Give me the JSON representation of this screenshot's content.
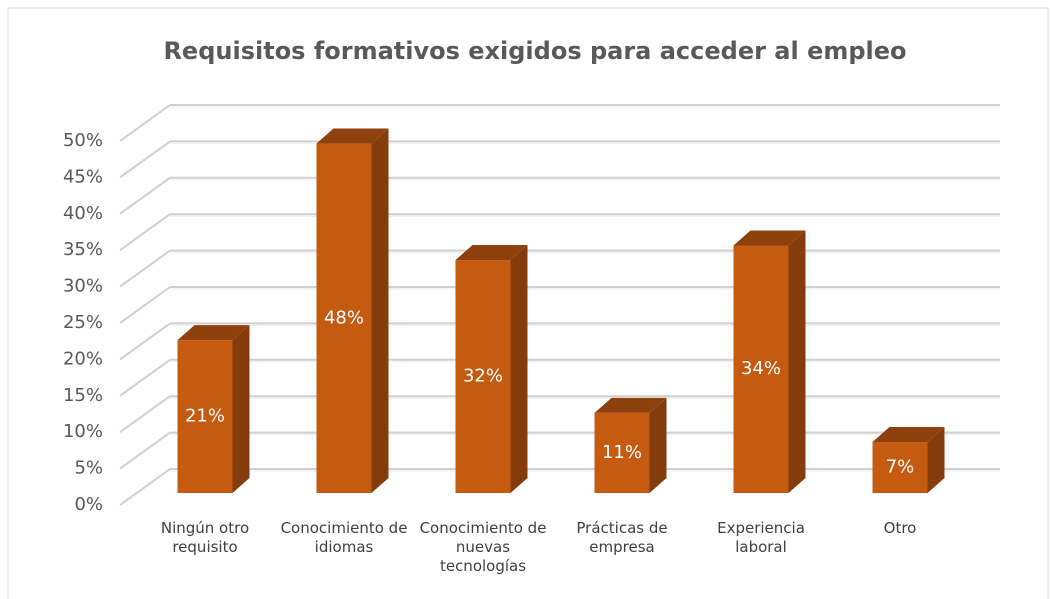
{
  "chart_data": {
    "type": "bar3d",
    "title": "Requisitos formativos exigidos para acceder al empleo",
    "categories": [
      "Ningún otro requisito",
      "Conocimiento de idiomas",
      "Conocimiento de nuevas tecnologías",
      "Prácticas de empresa",
      "Experiencia laboral",
      "Otro"
    ],
    "values": [
      21,
      48,
      32,
      11,
      34,
      7
    ],
    "value_labels": [
      "21%",
      "48%",
      "32%",
      "11%",
      "34%",
      "7%"
    ],
    "color": "#c55a11",
    "ylim": [
      0,
      50
    ],
    "yticks": [
      {
        "value": 0,
        "label": "0%"
      },
      {
        "value": 5,
        "label": "5%"
      },
      {
        "value": 10,
        "label": "10%"
      },
      {
        "value": 15,
        "label": "15%"
      },
      {
        "value": 20,
        "label": "20%"
      },
      {
        "value": 25,
        "label": "25%"
      },
      {
        "value": 30,
        "label": "30%"
      },
      {
        "value": 35,
        "label": "35%"
      },
      {
        "value": 40,
        "label": "40%"
      },
      {
        "value": 45,
        "label": "45%"
      },
      {
        "value": 50,
        "label": "50%"
      }
    ],
    "grid": true
  }
}
